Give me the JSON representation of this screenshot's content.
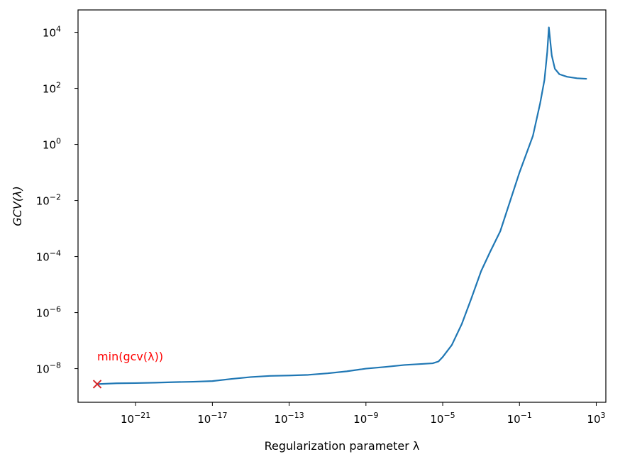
{
  "chart_data": {
    "type": "line",
    "title": "",
    "xlabel": "Regularization parameter λ",
    "ylabel": "GCV(λ)",
    "x_scale": "log",
    "y_scale": "log",
    "xlim": [
      1e-24,
      3162.28
    ],
    "ylim": [
      6.3e-10,
      63000.0
    ],
    "x_ticks": [
      {
        "value": 1e-21,
        "label": "10^-21"
      },
      {
        "value": 1e-17,
        "label": "10^-17"
      },
      {
        "value": 1e-13,
        "label": "10^-13"
      },
      {
        "value": 1e-09,
        "label": "10^-9"
      },
      {
        "value": 1e-05,
        "label": "10^-5"
      },
      {
        "value": 0.1,
        "label": "10^-1"
      },
      {
        "value": 1000,
        "label": "10^3"
      }
    ],
    "y_ticks": [
      {
        "value": 1e-08,
        "label": "10^-8"
      },
      {
        "value": 1e-06,
        "label": "10^-6"
      },
      {
        "value": 0.0001,
        "label": "10^-4"
      },
      {
        "value": 0.01,
        "label": "10^-2"
      },
      {
        "value": 1,
        "label": "10^0"
      },
      {
        "value": 100,
        "label": "10^2"
      },
      {
        "value": 10000,
        "label": "10^4"
      }
    ],
    "grid": false,
    "legend": "none",
    "series": [
      {
        "color": "#1f77b4",
        "x": [
          1e-23,
          1e-22,
          1e-21,
          1e-20,
          1e-19,
          1e-18,
          1e-17,
          1e-16,
          1e-15,
          1e-14,
          1e-13,
          1e-12,
          1e-11,
          1e-10,
          1e-09,
          1e-08,
          1e-07,
          3e-06,
          6e-06,
          1e-05,
          3e-05,
          0.0001,
          0.0003,
          0.001,
          0.003,
          0.01,
          0.1,
          0.5,
          1.2,
          2,
          2.8,
          3.4,
          4.8,
          7,
          12,
          30,
          100,
          300
        ],
        "y": [
          2.8e-09,
          3e-09,
          3.05e-09,
          3.15e-09,
          3.3e-09,
          3.4e-09,
          3.6e-09,
          4.3e-09,
          5e-09,
          5.5e-09,
          5.7e-09,
          6e-09,
          6.8e-09,
          8e-09,
          1e-08,
          1.15e-08,
          1.35e-08,
          1.55e-08,
          1.8e-08,
          2.6e-08,
          7e-08,
          4e-07,
          3e-06,
          3e-05,
          0.00015,
          0.0008,
          0.1,
          2,
          30,
          200,
          2000,
          15000,
          1500,
          500,
          320,
          260,
          230,
          220
        ]
      }
    ],
    "marker": {
      "x": 1e-23,
      "y": 2.8e-09,
      "symbol": "x",
      "color": "#d62728"
    },
    "annotation": {
      "text": "min(gcv(λ))",
      "x": 1e-23,
      "y": 2.8e-08,
      "color": "#ff0000"
    }
  }
}
